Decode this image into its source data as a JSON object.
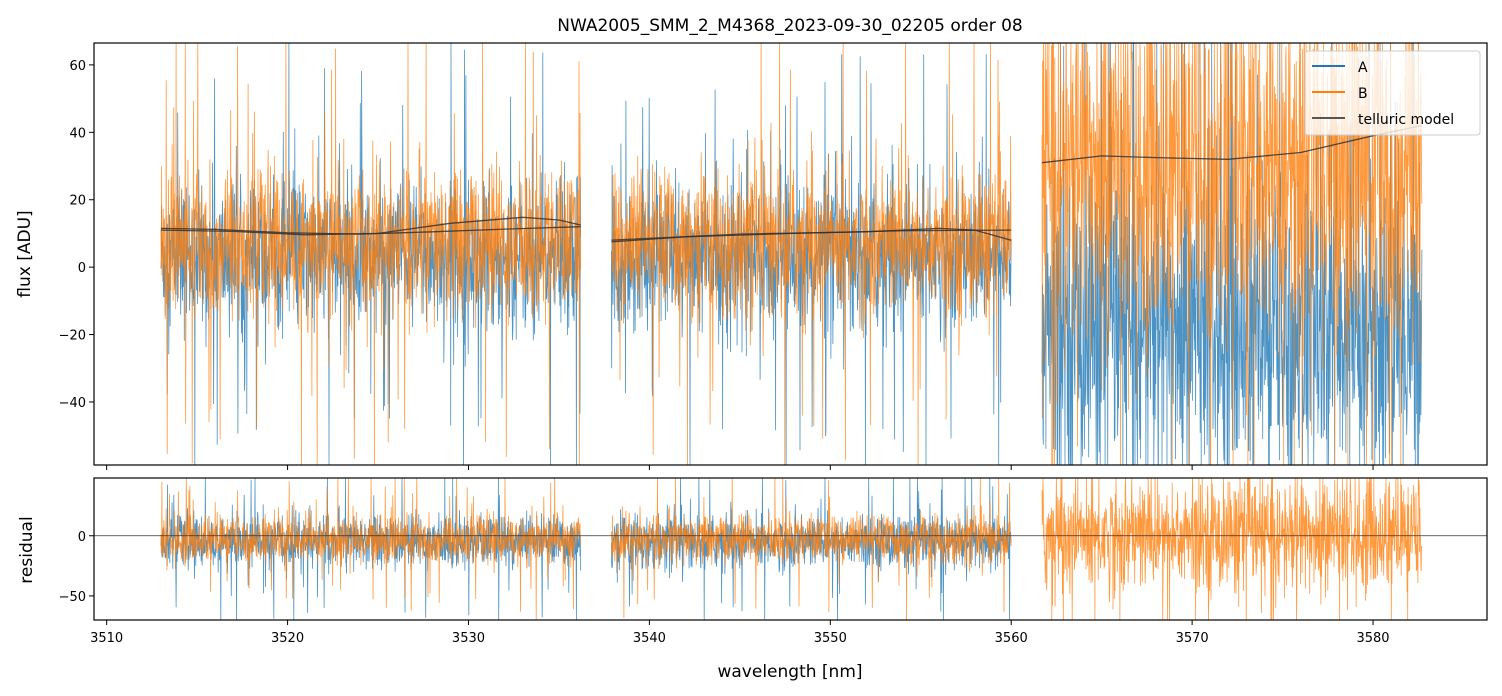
{
  "chart_data": [
    {
      "type": "line",
      "title": "NWA2005_SMM_2_M4368_2023-09-30_02205  order 08",
      "xlabel": "wavelength [nm]",
      "ylabel": "flux [ADU]",
      "xlim": [
        3509.3,
        3586.3
      ],
      "ylim": [
        -58.7,
        66.5
      ],
      "xticks": [
        3510,
        3520,
        3530,
        3540,
        3550,
        3560,
        3570,
        3580
      ],
      "yticks": [
        -40,
        -20,
        0,
        20,
        40,
        60
      ],
      "ytick_labels": [
        "−40",
        "−20",
        "0",
        "20",
        "40",
        "60"
      ],
      "grid": false,
      "legend_position": "top-right",
      "legend": [
        "A",
        "B",
        "telluric model"
      ],
      "colors": {
        "A": "#1f77b4",
        "B": "#ff7f0e",
        "telluric model": "#333333"
      },
      "segments": [
        {
          "x_range": [
            3513.0,
            3536.2
          ],
          "A": {
            "mean": 3,
            "scatter": 11
          },
          "B": {
            "mean": 7,
            "scatter": 11
          }
        },
        {
          "x_range": [
            3537.9,
            3560.0
          ],
          "A": {
            "mean": 3,
            "scatter": 11
          },
          "B": {
            "mean": 7,
            "scatter": 11
          }
        },
        {
          "x_range": [
            3561.7,
            3582.7
          ],
          "A": {
            "mean": -18,
            "scatter": 24
          },
          "B": {
            "mean": 30,
            "scatter": 28
          }
        }
      ],
      "telluric_model": [
        {
          "series": "A",
          "x": [
            3513,
            3516,
            3520,
            3524,
            3528,
            3532,
            3536.2
          ],
          "y": [
            11.5,
            11.2,
            10.2,
            9.8,
            10.5,
            11.3,
            12
          ]
        },
        {
          "series": "B",
          "x": [
            3513,
            3517,
            3521,
            3525,
            3529,
            3533,
            3535,
            3536.2
          ],
          "y": [
            11,
            10.6,
            9.6,
            10,
            13,
            14.8,
            14,
            12.5
          ]
        },
        {
          "series": "A",
          "x": [
            3537.9,
            3542,
            3548,
            3554,
            3560
          ],
          "y": [
            7.5,
            9,
            10,
            10.8,
            11
          ]
        },
        {
          "series": "B",
          "x": [
            3537.9,
            3545,
            3552,
            3556,
            3558,
            3560
          ],
          "y": [
            8,
            9.8,
            10.5,
            11.5,
            11,
            8
          ]
        },
        {
          "series": "B",
          "x": [
            3561.7,
            3565,
            3568,
            3572,
            3576,
            3580,
            3582.7
          ],
          "y": [
            31,
            33,
            32.5,
            32,
            34,
            39,
            42
          ]
        }
      ]
    },
    {
      "type": "line",
      "xlabel": "wavelength [nm]",
      "ylabel": "residual",
      "xlim": [
        3509.3,
        3586.3
      ],
      "ylim": [
        -70,
        48
      ],
      "xticks": [
        3510,
        3520,
        3530,
        3540,
        3550,
        3560,
        3570,
        3580
      ],
      "xtick_labels": [
        "3510",
        "3520",
        "3530",
        "3540",
        "3550",
        "3560",
        "3570",
        "3580"
      ],
      "yticks": [
        -50,
        0
      ],
      "ytick_labels": [
        "−50",
        "0"
      ],
      "reference_line": 0,
      "segments": [
        {
          "x_range": [
            3513.0,
            3536.2
          ],
          "A": {
            "mean": -5,
            "scatter": 11
          },
          "B": {
            "mean": -3,
            "scatter": 10
          }
        },
        {
          "x_range": [
            3537.9,
            3560.0
          ],
          "A": {
            "mean": -5,
            "scatter": 11
          },
          "B": {
            "mean": -3,
            "scatter": 10
          }
        },
        {
          "x_range": [
            3561.7,
            3582.7
          ],
          "B": {
            "mean": 0,
            "scatter": 24
          }
        }
      ]
    }
  ]
}
